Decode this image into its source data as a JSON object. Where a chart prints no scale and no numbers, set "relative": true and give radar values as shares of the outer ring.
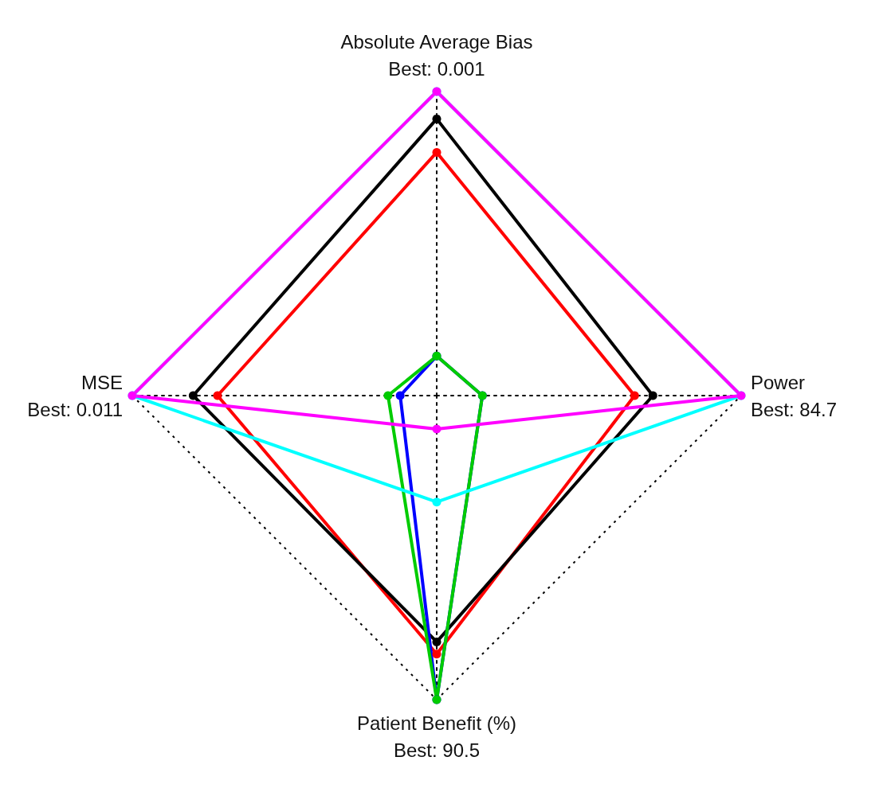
{
  "chart_data": {
    "type": "radar",
    "relative": true,
    "categories": [
      "Absolute Average Bias\nBest: 0.001",
      "Power\nBest: 84.7",
      "Patient Benefit (%)\nBest: 90.5",
      "MSE\nBest: 0.011"
    ],
    "series": [
      {
        "color": "#ff0000",
        "values": [
          0.8,
          0.65,
          0.85,
          0.72
        ]
      },
      {
        "color": "#000000",
        "values": [
          0.91,
          0.71,
          0.81,
          0.8
        ]
      },
      {
        "color": "#0000ff",
        "values": [
          0.13,
          0.15,
          1.0,
          0.12
        ]
      },
      {
        "color": "#00cc00",
        "values": [
          0.13,
          0.15,
          1.0,
          0.16
        ]
      },
      {
        "color": "#00ffff",
        "values": [
          1.0,
          1.0,
          0.35,
          1.0
        ]
      },
      {
        "color": "#ff00ff",
        "values": [
          1.0,
          1.0,
          0.11,
          1.0
        ]
      }
    ],
    "grid": true,
    "marker": "circle",
    "line_style": "solid"
  }
}
